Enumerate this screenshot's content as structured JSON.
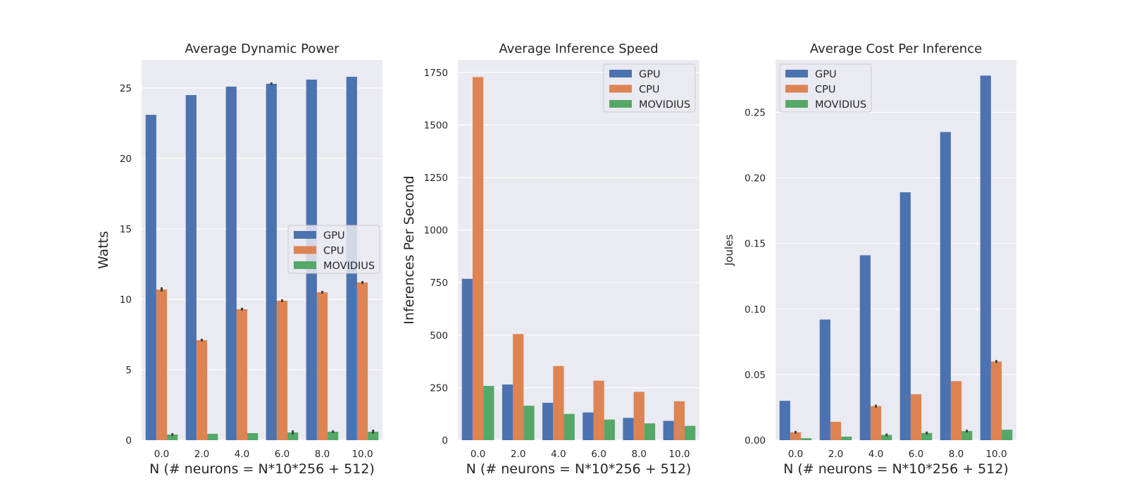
{
  "colors": {
    "GPU": "#4c72b0",
    "CPU": "#dd8452",
    "MOVIDIUS": "#55a868"
  },
  "chart_data": [
    {
      "type": "bar",
      "title": "Average Dynamic Power",
      "xlabel": "N (# neurons = N*10*256 + 512)",
      "ylabel": "Watts",
      "categories": [
        "0.0",
        "2.0",
        "4.0",
        "6.0",
        "8.0",
        "10.0"
      ],
      "ylim": [
        0,
        27
      ],
      "yticks": [
        0,
        5,
        10,
        15,
        20,
        25
      ],
      "yticklabels": [
        "0",
        "5",
        "10",
        "15",
        "20",
        "25"
      ],
      "grid": true,
      "legend": "center-right",
      "series": [
        {
          "name": "GPU",
          "values": [
            23.1,
            24.5,
            25.1,
            25.3,
            25.6,
            25.8
          ]
        },
        {
          "name": "CPU",
          "values": [
            10.7,
            7.1,
            9.3,
            9.9,
            10.5,
            11.2
          ]
        },
        {
          "name": "MOVIDIUS",
          "values": [
            0.4,
            0.45,
            0.5,
            0.55,
            0.6,
            0.6
          ]
        }
      ]
    },
    {
      "type": "bar",
      "title": "Average Inference Speed",
      "xlabel": "N (# neurons = N*10*256 + 512)",
      "ylabel": "Inferences Per Second",
      "categories": [
        "0.0",
        "2.0",
        "4.0",
        "6.0",
        "8.0",
        "10.0"
      ],
      "ylim": [
        0,
        1810
      ],
      "yticks": [
        0,
        250,
        500,
        750,
        1000,
        1250,
        1500,
        1750
      ],
      "yticklabels": [
        "0",
        "250",
        "500",
        "750",
        "1000",
        "1250",
        "1500",
        "1750"
      ],
      "grid": true,
      "legend": "top-right",
      "series": [
        {
          "name": "GPU",
          "values": [
            768,
            265,
            178,
            132,
            106,
            92
          ]
        },
        {
          "name": "CPU",
          "values": [
            1728,
            505,
            353,
            283,
            230,
            185
          ]
        },
        {
          "name": "MOVIDIUS",
          "values": [
            258,
            164,
            125,
            98,
            80,
            68
          ]
        }
      ]
    },
    {
      "type": "bar",
      "title": "Average Cost Per Inference",
      "xlabel": "N (# neurons = N*10*256 + 512)",
      "ylabel": "Joules",
      "categories": [
        "0.0",
        "2.0",
        "4.0",
        "6.0",
        "8.0",
        "10.0"
      ],
      "ylim": [
        0,
        0.29
      ],
      "yticks": [
        0,
        0.05,
        0.1,
        0.15,
        0.2,
        0.25
      ],
      "yticklabels": [
        "0.00",
        "0.05",
        "0.10",
        "0.15",
        "0.20",
        "0.25"
      ],
      "grid": true,
      "legend": "top-left",
      "series": [
        {
          "name": "GPU",
          "values": [
            0.03,
            0.092,
            0.141,
            0.189,
            0.235,
            0.278
          ]
        },
        {
          "name": "CPU",
          "values": [
            0.006,
            0.014,
            0.026,
            0.035,
            0.045,
            0.06
          ]
        },
        {
          "name": "MOVIDIUS",
          "values": [
            0.0015,
            0.0027,
            0.004,
            0.0055,
            0.007,
            0.008
          ]
        }
      ]
    }
  ]
}
